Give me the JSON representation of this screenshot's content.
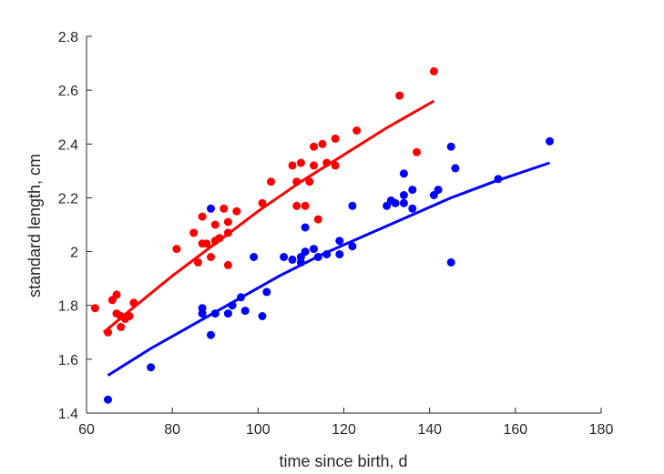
{
  "chart_data": {
    "type": "scatter",
    "title": "",
    "xlabel": "time since birth, d",
    "ylabel": "standard length, cm",
    "xlim": [
      60,
      180
    ],
    "ylim": [
      1.4,
      2.8
    ],
    "xticks": [
      "60",
      "80",
      "100",
      "120",
      "140",
      "160",
      "180"
    ],
    "yticks": [
      "1.4",
      "1.6",
      "1.8",
      "2",
      "2.2",
      "2.4",
      "2.6",
      "2.8"
    ],
    "grid": false,
    "legend": "none",
    "series": [
      {
        "color": "#ff0000",
        "points": [
          [
            62,
            1.79
          ],
          [
            65,
            1.7
          ],
          [
            66,
            1.82
          ],
          [
            67,
            1.84
          ],
          [
            67,
            1.77
          ],
          [
            68,
            1.72
          ],
          [
            68,
            1.76
          ],
          [
            69,
            1.75
          ],
          [
            70,
            1.76
          ],
          [
            71,
            1.81
          ],
          [
            81,
            2.01
          ],
          [
            85,
            2.07
          ],
          [
            86,
            1.96
          ],
          [
            87,
            2.13
          ],
          [
            87,
            2.03
          ],
          [
            88,
            2.03
          ],
          [
            89,
            1.98
          ],
          [
            90,
            2.1
          ],
          [
            90,
            2.04
          ],
          [
            91,
            2.05
          ],
          [
            92,
            2.16
          ],
          [
            93,
            2.07
          ],
          [
            93,
            1.95
          ],
          [
            93,
            2.11
          ],
          [
            95,
            2.15
          ],
          [
            101,
            2.18
          ],
          [
            103,
            2.26
          ],
          [
            108,
            2.32
          ],
          [
            109,
            2.26
          ],
          [
            109,
            2.17
          ],
          [
            110,
            2.33
          ],
          [
            111,
            2.17
          ],
          [
            112,
            2.26
          ],
          [
            113,
            2.39
          ],
          [
            113,
            2.32
          ],
          [
            114,
            2.12
          ],
          [
            115,
            2.4
          ],
          [
            116,
            2.33
          ],
          [
            118,
            2.32
          ],
          [
            118,
            2.42
          ],
          [
            123,
            2.45
          ],
          [
            133,
            2.58
          ],
          [
            137,
            2.37
          ],
          [
            141,
            2.67
          ]
        ],
        "fit": [
          [
            64,
            1.7
          ],
          [
            70,
            1.78
          ],
          [
            80,
            1.91
          ],
          [
            90,
            2.03
          ],
          [
            100,
            2.15
          ],
          [
            110,
            2.26
          ],
          [
            120,
            2.36
          ],
          [
            130,
            2.46
          ],
          [
            141,
            2.56
          ]
        ]
      },
      {
        "color": "#0000ff",
        "points": [
          [
            65,
            1.45
          ],
          [
            75,
            1.57
          ],
          [
            87,
            1.77
          ],
          [
            87,
            1.79
          ],
          [
            89,
            2.16
          ],
          [
            89,
            1.69
          ],
          [
            90,
            1.77
          ],
          [
            93,
            1.77
          ],
          [
            94,
            1.8
          ],
          [
            96,
            1.83
          ],
          [
            97,
            1.78
          ],
          [
            99,
            1.98
          ],
          [
            101,
            1.76
          ],
          [
            102,
            1.85
          ],
          [
            106,
            1.98
          ],
          [
            108,
            1.97
          ],
          [
            110,
            1.96
          ],
          [
            110,
            1.98
          ],
          [
            111,
            2.0
          ],
          [
            111,
            2.09
          ],
          [
            113,
            2.01
          ],
          [
            114,
            1.98
          ],
          [
            116,
            1.99
          ],
          [
            119,
            1.99
          ],
          [
            119,
            2.04
          ],
          [
            122,
            2.02
          ],
          [
            122,
            2.17
          ],
          [
            130,
            2.17
          ],
          [
            131,
            2.19
          ],
          [
            132,
            2.18
          ],
          [
            134,
            2.18
          ],
          [
            134,
            2.21
          ],
          [
            134,
            2.29
          ],
          [
            136,
            2.16
          ],
          [
            136,
            2.23
          ],
          [
            141,
            2.21
          ],
          [
            142,
            2.23
          ],
          [
            145,
            2.39
          ],
          [
            145,
            1.96
          ],
          [
            146,
            2.31
          ],
          [
            156,
            2.27
          ],
          [
            168,
            2.41
          ]
        ],
        "fit": [
          [
            65,
            1.54
          ],
          [
            75,
            1.64
          ],
          [
            85,
            1.73
          ],
          [
            95,
            1.82
          ],
          [
            105,
            1.91
          ],
          [
            115,
            1.99
          ],
          [
            125,
            2.06
          ],
          [
            135,
            2.13
          ],
          [
            145,
            2.2
          ],
          [
            155,
            2.26
          ],
          [
            168,
            2.33
          ]
        ]
      }
    ]
  }
}
